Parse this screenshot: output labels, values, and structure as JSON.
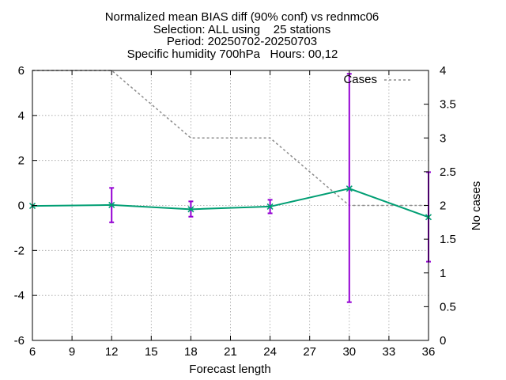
{
  "chart_data": {
    "type": "line",
    "title_lines": [
      "Normalized mean BIAS diff (90% conf) vs rednmc06",
      "Selection: ALL using    25 stations",
      "Period: 20250702-20250703",
      "Specific humidity 700hPa   Hours: 00,12"
    ],
    "xlabel": "Forecast length",
    "ylabel": "",
    "y2label": "No cases",
    "xlim": [
      6,
      36
    ],
    "ylim": [
      -6,
      6
    ],
    "y2lim": [
      0,
      4
    ],
    "xticks": [
      6,
      9,
      12,
      15,
      18,
      21,
      24,
      27,
      30,
      33,
      36
    ],
    "yticks": [
      -6,
      -4,
      -2,
      0,
      2,
      4,
      6
    ],
    "y2ticks": [
      "0",
      "0.5",
      "1",
      "1.5",
      "2",
      "2.5",
      "3",
      "3.5",
      "4"
    ],
    "grid": true,
    "legend_position": "top-right",
    "series": [
      {
        "axis": "y",
        "color": "#009e73",
        "x": [
          6,
          12,
          18,
          24,
          30,
          36
        ],
        "values": [
          -0.02,
          0.02,
          -0.17,
          -0.05,
          0.75,
          -0.52
        ]
      },
      {
        "name": "Cases",
        "axis": "y2",
        "color": "#8c8c8c",
        "dashed": true,
        "x": [
          6,
          12,
          18,
          24,
          30,
          36
        ],
        "values": [
          4,
          4,
          3,
          3,
          2,
          2
        ]
      }
    ],
    "error_bars": {
      "color": "#9400d3",
      "x": [
        12,
        18,
        24,
        30,
        36
      ],
      "low": [
        -0.75,
        -0.5,
        -0.35,
        -4.3,
        -2.5
      ],
      "high": [
        0.78,
        0.18,
        0.25,
        5.85,
        1.48
      ]
    }
  }
}
